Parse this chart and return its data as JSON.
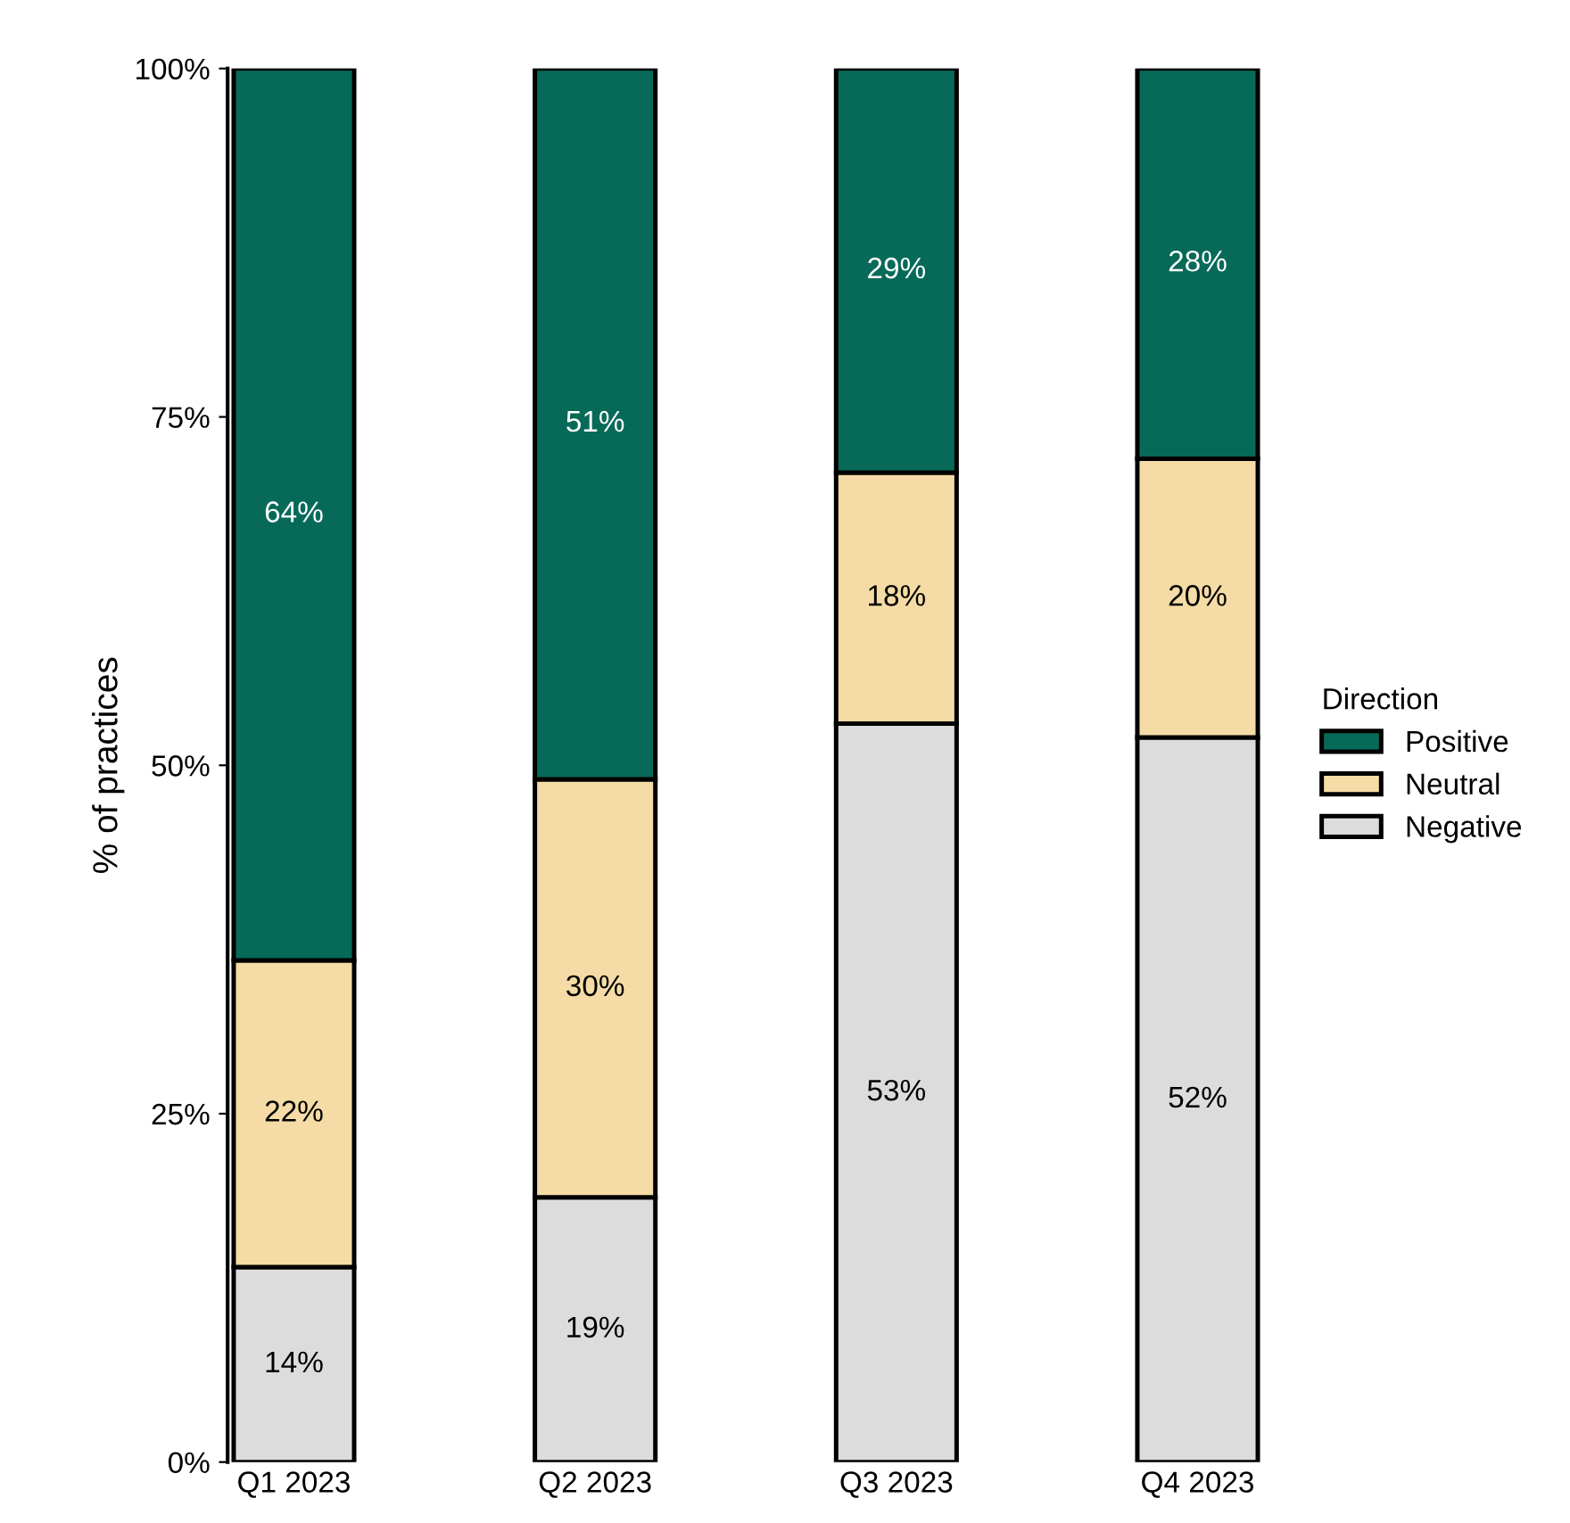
{
  "chart_data": {
    "type": "bar",
    "stacked": true,
    "ylabel": "% of practices",
    "legend_title": "Direction",
    "legend": "right",
    "grid": false,
    "categories": [
      "Q1 2023",
      "Q2 2023",
      "Q3 2023",
      "Q4 2023"
    ],
    "ylim": [
      0,
      100
    ],
    "yticks": [
      {
        "value": 0,
        "label": "0%"
      },
      {
        "value": 25,
        "label": "25%"
      },
      {
        "value": 50,
        "label": "50%"
      },
      {
        "value": 75,
        "label": "75%"
      },
      {
        "value": 100,
        "label": "100%"
      }
    ],
    "series": [
      {
        "name": "Negative",
        "color": "#dcdcdc",
        "values": [
          14,
          19,
          53,
          52
        ],
        "value_labels": [
          "14%",
          "19%",
          "53%",
          "52%"
        ]
      },
      {
        "name": "Neutral",
        "color": "#f5dba5",
        "values": [
          22,
          30,
          18,
          20
        ],
        "value_labels": [
          "22%",
          "30%",
          "18%",
          "20%"
        ]
      },
      {
        "name": "Positive",
        "color": "#076a58",
        "values": [
          64,
          51,
          29,
          28
        ],
        "value_labels": [
          "64%",
          "51%",
          "29%",
          "28%"
        ]
      }
    ]
  }
}
